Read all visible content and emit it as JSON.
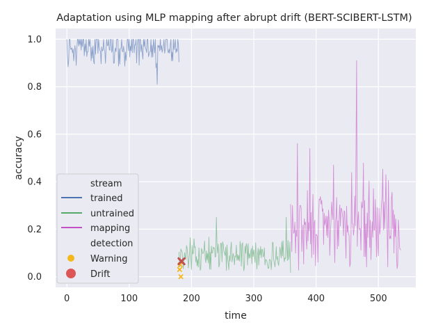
{
  "chart_data": {
    "type": "line",
    "title": "Adaptation using MLP mapping after abrupt drift (BERT-SCIBERT-LSTM)",
    "xlabel": "time",
    "ylabel": "accuracy",
    "xlim": [
      -18,
      560
    ],
    "ylim": [
      -0.045,
      1.045
    ],
    "xticks": [
      0,
      100,
      200,
      300,
      400,
      500
    ],
    "yticks": [
      0.0,
      0.2,
      0.4,
      0.6,
      0.8,
      1.0
    ],
    "grid": true,
    "legend_position": "lower-left",
    "series": [
      {
        "name": "trained",
        "color": "#4c72b0",
        "x_start": 0,
        "x_end": 180,
        "seed": 7,
        "base": 0.96,
        "jitter": 0.05,
        "min": 0.81,
        "max": 1.0
      },
      {
        "name": "untrained",
        "color": "#55a868",
        "x_start": 180,
        "x_end": 359,
        "seed": 13,
        "base": 0.09,
        "jitter": 0.07,
        "min": 0.0,
        "max": 0.25
      },
      {
        "name": "mapping",
        "color": "#c44ec4",
        "x_start": 359,
        "x_end": 536,
        "seed": 29,
        "base": 0.2,
        "jitter": 0.1,
        "min": 0.0,
        "max": 0.91
      }
    ],
    "spikes": [
      {
        "series": "trained",
        "x": 145,
        "y": 0.81
      },
      {
        "series": "untrained",
        "x": 240,
        "y": 0.25
      },
      {
        "series": "untrained",
        "x": 352,
        "y": 0.25
      },
      {
        "series": "mapping",
        "x": 370,
        "y": 0.56
      },
      {
        "series": "mapping",
        "x": 390,
        "y": 0.54
      },
      {
        "series": "mapping",
        "x": 428,
        "y": 0.47
      },
      {
        "series": "mapping",
        "x": 465,
        "y": 0.91
      }
    ],
    "detections": {
      "warning": [
        {
          "x": 183,
          "y": 0.0
        },
        {
          "x": 181,
          "y": 0.03
        },
        {
          "x": 182,
          "y": 0.05
        }
      ],
      "drift": [
        {
          "x": 184,
          "y": 0.065
        }
      ]
    },
    "legend": {
      "stream_title": "stream",
      "detection_title": "detection",
      "items": [
        {
          "label": "trained",
          "color": "#4c72b0",
          "kind": "line"
        },
        {
          "label": "untrained",
          "color": "#55a868",
          "kind": "line"
        },
        {
          "label": "mapping",
          "color": "#c44ec4",
          "kind": "line"
        },
        {
          "label": "Warning",
          "color": "#f5b81b",
          "kind": "dot-small"
        },
        {
          "label": "Drift",
          "color": "#dd5656",
          "kind": "dot-large"
        }
      ]
    }
  }
}
